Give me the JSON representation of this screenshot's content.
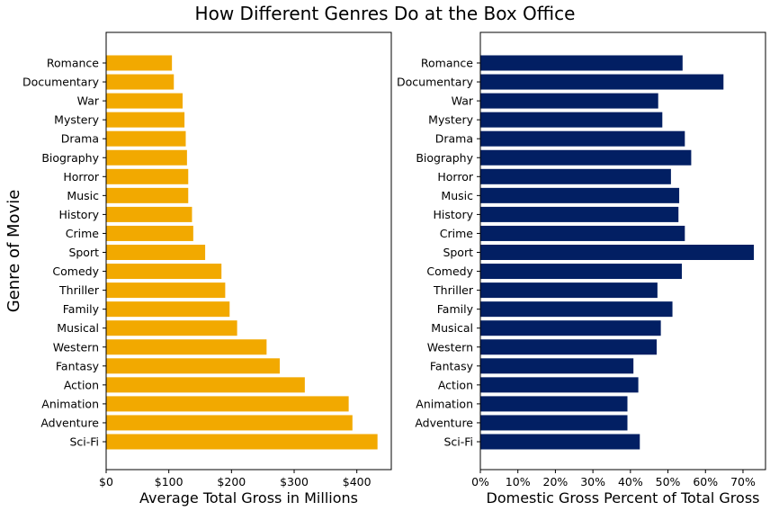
{
  "figure": {
    "title": "How Different Genres Do at the Box Office",
    "ylabel": "Genre of Movie"
  },
  "chart_data": [
    {
      "type": "bar",
      "orientation": "horizontal",
      "xlabel": "Average Total Gross in Millions",
      "ylabel": "Genre of Movie",
      "xlim": [
        0,
        455
      ],
      "xticks": [
        0,
        100,
        200,
        300,
        400
      ],
      "xtick_labels": [
        "$0",
        "$100",
        "$200",
        "$300",
        "$400"
      ],
      "color": "#f2a900",
      "categories": [
        "Sci-Fi",
        "Adventure",
        "Animation",
        "Action",
        "Fantasy",
        "Western",
        "Musical",
        "Family",
        "Thriller",
        "Comedy",
        "Sport",
        "Crime",
        "History",
        "Music",
        "Horror",
        "Biography",
        "Drama",
        "Mystery",
        "War",
        "Documentary",
        "Romance"
      ],
      "values": [
        433,
        393,
        387,
        317,
        277,
        256,
        209,
        197,
        190,
        184,
        158,
        139,
        137,
        131,
        131,
        129,
        127,
        125,
        122,
        108,
        105
      ]
    },
    {
      "type": "bar",
      "orientation": "horizontal",
      "xlabel": "Domestic Gross Percent of Total Gross",
      "xlim": [
        0,
        0.76
      ],
      "xticks": [
        0,
        0.1,
        0.2,
        0.3,
        0.4,
        0.5,
        0.6,
        0.7
      ],
      "xtick_labels": [
        "0%",
        "10%",
        "20%",
        "30%",
        "40%",
        "50%",
        "60%",
        "70%"
      ],
      "color": "#021f63",
      "categories": [
        "Sci-Fi",
        "Adventure",
        "Animation",
        "Action",
        "Fantasy",
        "Western",
        "Musical",
        "Family",
        "Thriller",
        "Comedy",
        "Sport",
        "Crime",
        "History",
        "Music",
        "Horror",
        "Biography",
        "Drama",
        "Mystery",
        "War",
        "Documentary",
        "Romance"
      ],
      "values": [
        0.425,
        0.392,
        0.392,
        0.421,
        0.408,
        0.47,
        0.481,
        0.512,
        0.472,
        0.537,
        0.729,
        0.545,
        0.528,
        0.53,
        0.508,
        0.562,
        0.545,
        0.485,
        0.474,
        0.648,
        0.539
      ]
    }
  ]
}
